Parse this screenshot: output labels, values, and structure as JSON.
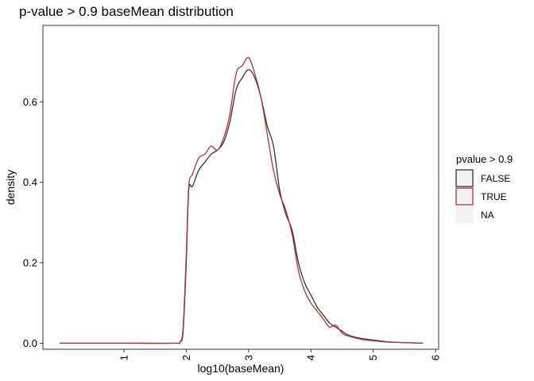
{
  "chart_data": {
    "type": "line",
    "title": "p-value > 0.9 baseMean distribution",
    "xlabel": "log10(baseMean)",
    "ylabel": "density",
    "xlim": [
      -0.3,
      6.05
    ],
    "ylim": [
      -0.015,
      0.79
    ],
    "x_ticks": [
      1,
      2,
      3,
      4,
      5,
      6
    ],
    "y_ticks": [
      0.0,
      0.2,
      0.4,
      0.6
    ],
    "x_tick_labels": [
      "1",
      "2",
      "3",
      "4",
      "5",
      "6"
    ],
    "y_tick_labels": [
      "0.0",
      "0.2",
      "0.4",
      "0.6"
    ],
    "grid": false,
    "legend": {
      "title": "pvalue > 0.9",
      "placement": "right",
      "entries": [
        {
          "label": "FALSE",
          "color": "#333333"
        },
        {
          "label": "TRUE",
          "color": "#b2323a"
        },
        {
          "label": "NA",
          "color": "#f0f0f0"
        }
      ]
    },
    "series": [
      {
        "name": "FALSE",
        "color": "#333333",
        "points": [
          [
            -0.03,
            0.0
          ],
          [
            1.0,
            0.0
          ],
          [
            1.8,
            0.0
          ],
          [
            1.9,
            0.003
          ],
          [
            1.95,
            0.03
          ],
          [
            2.0,
            0.2
          ],
          [
            2.04,
            0.38
          ],
          [
            2.1,
            0.39
          ],
          [
            2.2,
            0.43
          ],
          [
            2.3,
            0.45
          ],
          [
            2.4,
            0.47
          ],
          [
            2.5,
            0.48
          ],
          [
            2.6,
            0.5
          ],
          [
            2.7,
            0.55
          ],
          [
            2.8,
            0.63
          ],
          [
            2.9,
            0.66
          ],
          [
            3.0,
            0.68
          ],
          [
            3.1,
            0.66
          ],
          [
            3.2,
            0.61
          ],
          [
            3.3,
            0.54
          ],
          [
            3.4,
            0.49
          ],
          [
            3.5,
            0.38
          ],
          [
            3.6,
            0.32
          ],
          [
            3.7,
            0.28
          ],
          [
            3.8,
            0.2
          ],
          [
            3.9,
            0.15
          ],
          [
            4.0,
            0.12
          ],
          [
            4.1,
            0.09
          ],
          [
            4.2,
            0.07
          ],
          [
            4.3,
            0.05
          ],
          [
            4.4,
            0.04
          ],
          [
            4.5,
            0.03
          ],
          [
            4.6,
            0.02
          ],
          [
            4.8,
            0.012
          ],
          [
            5.0,
            0.008
          ],
          [
            5.2,
            0.004
          ],
          [
            5.4,
            0.002
          ],
          [
            5.6,
            0.001
          ],
          [
            5.8,
            0.0
          ]
        ]
      },
      {
        "name": "TRUE",
        "color": "#b2323a",
        "points": [
          [
            -0.03,
            0.0
          ],
          [
            1.0,
            0.0
          ],
          [
            1.8,
            0.0
          ],
          [
            1.9,
            0.003
          ],
          [
            1.95,
            0.04
          ],
          [
            2.0,
            0.22
          ],
          [
            2.04,
            0.39
          ],
          [
            2.1,
            0.42
          ],
          [
            2.2,
            0.46
          ],
          [
            2.3,
            0.47
          ],
          [
            2.4,
            0.49
          ],
          [
            2.5,
            0.48
          ],
          [
            2.6,
            0.51
          ],
          [
            2.7,
            0.57
          ],
          [
            2.8,
            0.67
          ],
          [
            2.9,
            0.69
          ],
          [
            3.0,
            0.71
          ],
          [
            3.1,
            0.67
          ],
          [
            3.2,
            0.61
          ],
          [
            3.3,
            0.52
          ],
          [
            3.4,
            0.43
          ],
          [
            3.5,
            0.37
          ],
          [
            3.6,
            0.33
          ],
          [
            3.7,
            0.27
          ],
          [
            3.8,
            0.18
          ],
          [
            3.9,
            0.13
          ],
          [
            4.0,
            0.1
          ],
          [
            4.1,
            0.08
          ],
          [
            4.2,
            0.06
          ],
          [
            4.3,
            0.04
          ],
          [
            4.4,
            0.045
          ],
          [
            4.5,
            0.025
          ],
          [
            4.6,
            0.018
          ],
          [
            4.8,
            0.01
          ],
          [
            5.0,
            0.006
          ],
          [
            5.2,
            0.003
          ],
          [
            5.4,
            0.002
          ],
          [
            5.6,
            0.001
          ],
          [
            5.8,
            0.0
          ]
        ]
      }
    ]
  }
}
